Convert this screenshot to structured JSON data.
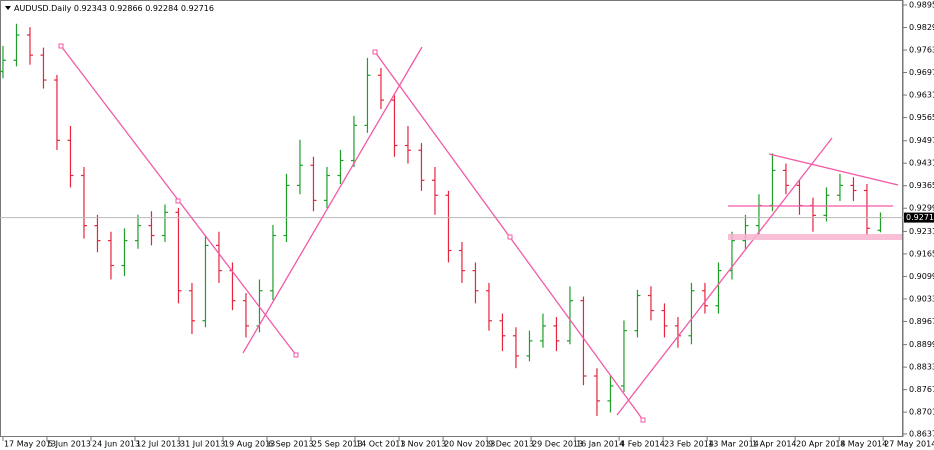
{
  "chart_data": {
    "type": "ohlc",
    "title": "AUDUSD.Daily",
    "series": {
      "open": [
        0.97,
        0.9733,
        0.9807,
        0.9748,
        0.9675,
        0.9498,
        0.9395,
        0.9248,
        0.9204,
        0.9131,
        0.9204,
        0.9248,
        0.9219,
        0.9287,
        0.9057,
        0.8969,
        0.919,
        0.9116,
        0.9028,
        0.8954,
        0.9057,
        0.9219,
        0.9366,
        0.9425,
        0.9322,
        0.9395,
        0.9439,
        0.9542,
        0.9689,
        0.9616,
        0.9483,
        0.9469,
        0.9381,
        0.9337,
        0.9175,
        0.9116,
        0.9057,
        0.8969,
        0.8925,
        0.8866,
        0.891,
        0.8954,
        0.891,
        0.9028,
        0.8807,
        0.8734,
        0.8778,
        0.894,
        0.9043,
        0.8999,
        0.8954,
        0.8925,
        0.9057,
        0.9013,
        0.9116,
        0.9204,
        0.9248,
        0.9307,
        0.941,
        0.9366,
        0.9307,
        0.9278,
        0.9337,
        0.9366,
        0.9351,
        0.92343
      ],
      "high": [
        0.9775,
        0.984,
        0.983,
        0.977,
        0.969,
        0.954,
        0.942,
        0.928,
        0.923,
        0.924,
        0.928,
        0.929,
        0.931,
        0.93,
        0.908,
        0.922,
        0.923,
        0.914,
        0.905,
        0.909,
        0.925,
        0.94,
        0.95,
        0.945,
        0.942,
        0.947,
        0.957,
        0.974,
        0.971,
        0.963,
        0.954,
        0.949,
        0.942,
        0.935,
        0.92,
        0.914,
        0.908,
        0.899,
        0.895,
        0.894,
        0.899,
        0.898,
        0.907,
        0.904,
        0.883,
        0.881,
        0.897,
        0.906,
        0.907,
        0.902,
        0.898,
        0.908,
        0.908,
        0.914,
        0.923,
        0.928,
        0.934,
        0.946,
        0.943,
        0.938,
        0.933,
        0.936,
        0.94,
        0.939,
        0.937,
        0.92866
      ],
      "low": [
        0.968,
        0.9715,
        0.972,
        0.965,
        0.947,
        0.936,
        0.921,
        0.917,
        0.909,
        0.91,
        0.918,
        0.919,
        0.92,
        0.902,
        0.893,
        0.895,
        0.908,
        0.9,
        0.892,
        0.8935,
        0.903,
        0.92,
        0.934,
        0.929,
        0.93,
        0.937,
        0.942,
        0.952,
        0.959,
        0.945,
        0.943,
        0.935,
        0.928,
        0.914,
        0.908,
        0.902,
        0.894,
        0.888,
        0.883,
        0.885,
        0.889,
        0.888,
        0.89,
        0.878,
        0.869,
        0.87,
        0.876,
        0.892,
        0.897,
        0.892,
        0.889,
        0.89,
        0.899,
        0.899,
        0.909,
        0.918,
        0.922,
        0.929,
        0.934,
        0.928,
        0.923,
        0.926,
        0.932,
        0.932,
        0.922,
        0.92284
      ],
      "close": [
        0.9733,
        0.9807,
        0.9748,
        0.9675,
        0.9498,
        0.9395,
        0.9248,
        0.9204,
        0.9131,
        0.9204,
        0.9248,
        0.9219,
        0.9287,
        0.9057,
        0.8969,
        0.919,
        0.9116,
        0.9028,
        0.8954,
        0.9057,
        0.9219,
        0.9366,
        0.9425,
        0.9322,
        0.9395,
        0.9439,
        0.9542,
        0.9689,
        0.9616,
        0.9483,
        0.9469,
        0.9381,
        0.9337,
        0.9175,
        0.9116,
        0.9057,
        0.8969,
        0.8925,
        0.8866,
        0.891,
        0.8954,
        0.891,
        0.9028,
        0.8807,
        0.8734,
        0.8778,
        0.894,
        0.9043,
        0.8999,
        0.8954,
        0.8925,
        0.9057,
        0.9013,
        0.9116,
        0.9204,
        0.9248,
        0.9307,
        0.941,
        0.9366,
        0.9307,
        0.9278,
        0.9337,
        0.9366,
        0.9351,
        0.924,
        0.92716
      ]
    },
    "up_color": "#1f9f2a",
    "down_color": "#e8243c",
    "last_price_line": true,
    "ylim": [
      0.86281,
      0.99097
    ],
    "yticks": [
      {
        "value": 0.9895,
        "label": "0.98950"
      },
      {
        "value": 0.9829,
        "label": "0.98290"
      },
      {
        "value": 0.9763,
        "label": "0.97630"
      },
      {
        "value": 0.9697,
        "label": "0.96970"
      },
      {
        "value": 0.9631,
        "label": "0.96310"
      },
      {
        "value": 0.9565,
        "label": "0.95650"
      },
      {
        "value": 0.9497,
        "label": "0.94970"
      },
      {
        "value": 0.9431,
        "label": "0.94310"
      },
      {
        "value": 0.9365,
        "label": "0.93650"
      },
      {
        "value": 0.9299,
        "label": "0.92990"
      },
      {
        "value": 0.9231,
        "label": "0.92310"
      },
      {
        "value": 0.9165,
        "label": "0.91650"
      },
      {
        "value": 0.9099,
        "label": "0.90990"
      },
      {
        "value": 0.9033,
        "label": "0.90330"
      },
      {
        "value": 0.8967,
        "label": "0.89670"
      },
      {
        "value": 0.8899,
        "label": "0.88990"
      },
      {
        "value": 0.8833,
        "label": "0.88330"
      },
      {
        "value": 0.8767,
        "label": "0.87670"
      },
      {
        "value": 0.8701,
        "label": "0.87010"
      },
      {
        "value": 0.8637,
        "label": "0.86370"
      }
    ],
    "xlim": [
      -0.22,
      66.67
    ],
    "xticks": [
      {
        "value": 0,
        "label": "17 May 2013"
      },
      {
        "value": 3.26,
        "label": "5 Jun 2013"
      },
      {
        "value": 6.52,
        "label": "24 Jun 2013"
      },
      {
        "value": 9.78,
        "label": "12 Jul 2013"
      },
      {
        "value": 13.04,
        "label": "31 Jul 2013"
      },
      {
        "value": 16.3,
        "label": "19 Aug 2013"
      },
      {
        "value": 19.56,
        "label": "6 Sep 2013"
      },
      {
        "value": 22.82,
        "label": "25 Sep 2013"
      },
      {
        "value": 26.08,
        "label": "14 Oct 2013"
      },
      {
        "value": 29.34,
        "label": "1 Nov 2013"
      },
      {
        "value": 32.6,
        "label": "20 Nov 2013"
      },
      {
        "value": 35.86,
        "label": "9 Dec 2013"
      },
      {
        "value": 39.12,
        "label": "29 Dec 2013"
      },
      {
        "value": 42.38,
        "label": "16 Jan 2014"
      },
      {
        "value": 45.64,
        "label": "4 Feb 2014"
      },
      {
        "value": 48.9,
        "label": "23 Feb 2014"
      },
      {
        "value": 52.16,
        "label": "13 Mar 2014"
      },
      {
        "value": 55.42,
        "label": "1 Apr 2014"
      },
      {
        "value": 58.68,
        "label": "20 Apr 2014"
      },
      {
        "value": 61.94,
        "label": "8 May 2014"
      },
      {
        "value": 65.2,
        "label": "27 May 2014"
      }
    ]
  }
}
